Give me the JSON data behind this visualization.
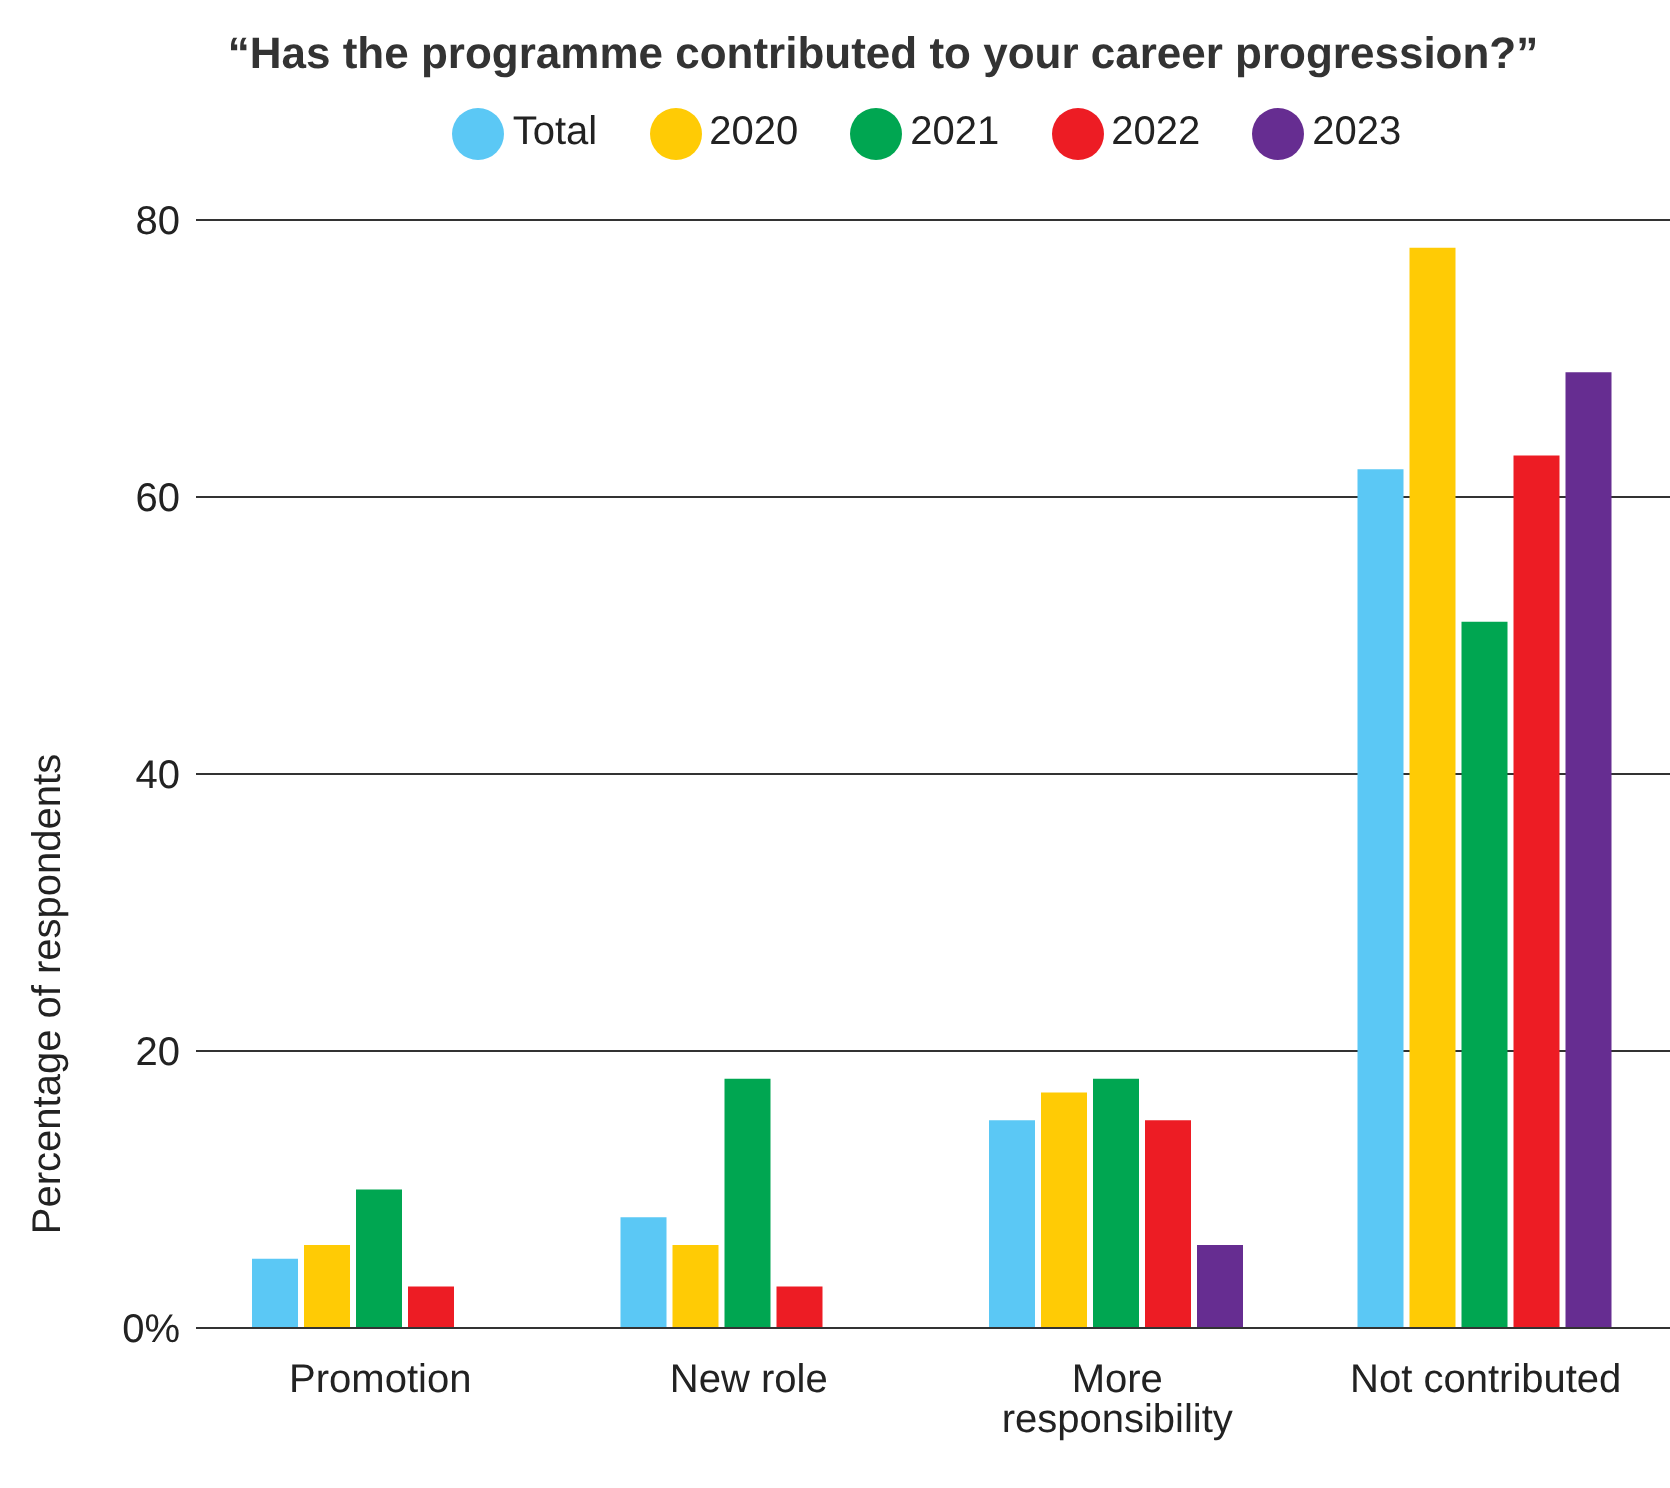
{
  "chart_data": {
    "type": "bar",
    "title": "“Has the programme contributed to your career progression?”",
    "ylabel": "Percentage of respondents",
    "categories": [
      "Promotion",
      "New role",
      "More responsibility",
      "Not contributed"
    ],
    "series": [
      {
        "name": "Total",
        "color": "#5bc8f5",
        "values": [
          5,
          8,
          15,
          62
        ]
      },
      {
        "name": "2020",
        "color": "#ffcb05",
        "values": [
          6,
          6,
          17,
          78
        ]
      },
      {
        "name": "2021",
        "color": "#00a651",
        "values": [
          10,
          18,
          18,
          51
        ]
      },
      {
        "name": "2022",
        "color": "#ed1c24",
        "values": [
          3,
          3,
          15,
          63
        ]
      },
      {
        "name": "2023",
        "color": "#662d91",
        "values": [
          null,
          null,
          6,
          69
        ]
      }
    ],
    "ylim": [
      0,
      80
    ],
    "yticks": [
      {
        "value": 0,
        "label": "0%"
      },
      20,
      40,
      60,
      80
    ],
    "grid": "y",
    "legend": "top"
  }
}
